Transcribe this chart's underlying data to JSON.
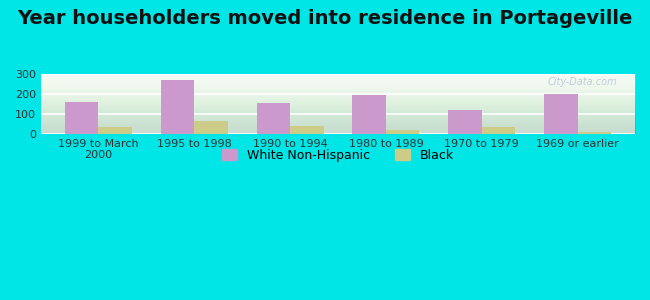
{
  "title": "Year householders moved into residence in Portageville",
  "categories": [
    "1999 to March\n2000",
    "1995 to 1998",
    "1990 to 1994",
    "1980 to 1989",
    "1970 to 1979",
    "1969 or earlier"
  ],
  "white_values": [
    158,
    270,
    156,
    196,
    122,
    200
  ],
  "black_values": [
    35,
    67,
    40,
    22,
    33,
    10
  ],
  "white_color": "#cc99cc",
  "black_color": "#cccc88",
  "background_outer": "#00e5e5",
  "background_plot_top": "#f5faf5",
  "background_plot_bottom": "#e8f5e8",
  "ylim": [
    0,
    300
  ],
  "yticks": [
    0,
    100,
    200,
    300
  ],
  "bar_width": 0.35,
  "title_fontsize": 14,
  "tick_fontsize": 8,
  "legend_fontsize": 9,
  "watermark": "City-Data.com"
}
